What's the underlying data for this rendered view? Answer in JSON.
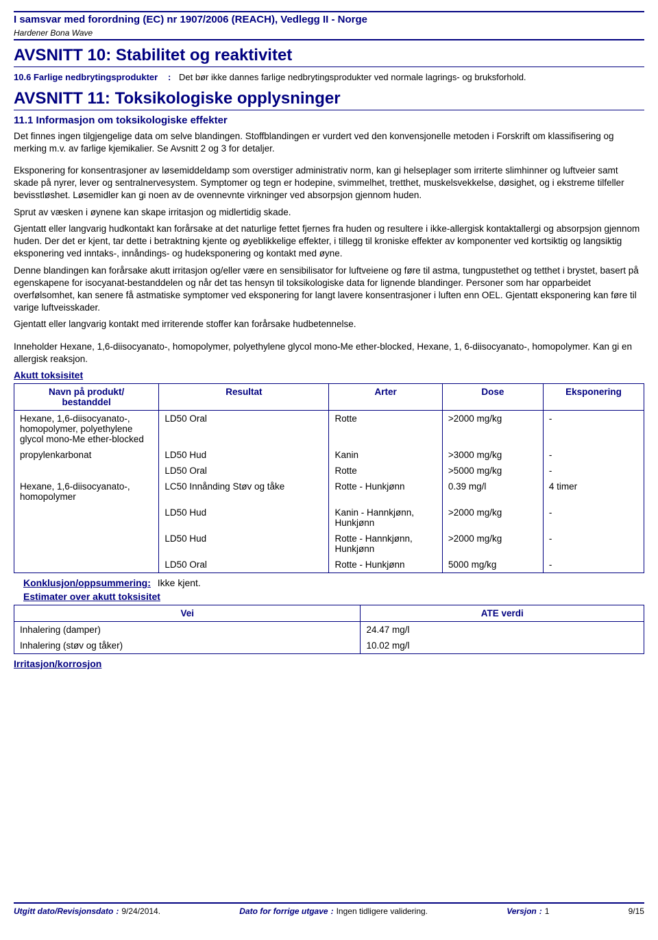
{
  "header": {
    "reg_line": "I samsvar med forordning (EC) nr 1907/2006 (REACH), Vedlegg II - Norge",
    "product": "Hardener Bona Wave"
  },
  "section10": {
    "title": "AVSNITT 10: Stabilitet og reaktivitet",
    "item": {
      "label": "10.6 Farlige nedbrytingsprodukter",
      "sep": ":",
      "value": "Det bør ikke dannes farlige nedbrytingsprodukter ved normale lagrings- og bruksforhold."
    }
  },
  "section11": {
    "title": "AVSNITT 11: Toksikologiske opplysninger",
    "sub": "11.1 Informasjon om toksikologiske effekter",
    "para1": "Det finnes ingen tilgjengelige data om selve blandingen. Stoffblandingen er vurdert ved den konvensjonelle metoden i Forskrift om klassifisering og merking m.v. av farlige kjemikalier. Se Avsnitt 2 og 3 for detaljer.",
    "para2": "Eksponering for konsentrasjoner av løsemiddeldamp som overstiger administrativ norm, kan gi helseplager som irriterte slimhinner og luftveier samt skade på nyrer, lever og sentralnervesystem. Symptomer og tegn er hodepine, svimmelhet, tretthet, muskelsvekkelse, døsighet, og i ekstreme tilfeller bevisstløshet. Løsemidler kan gi noen av de ovennevnte virkninger ved absorpsjon gjennom huden.",
    "para3": "Sprut av væsken i øynene kan skape irritasjon og midlertidig skade.",
    "para4": "Gjentatt eller langvarig hudkontakt kan forårsake at det naturlige fettet fjernes fra huden og resultere i ikke-allergisk kontaktallergi og absorpsjon gjennom huden. Der det er kjent, tar dette i betraktning kjente og øyeblikkelige effekter, i tillegg til kroniske effekter av komponenter ved kortsiktig og langsiktig eksponering ved inntaks-, innåndings- og hudeksponering og kontakt med øyne.",
    "para5": "Denne blandingen kan forårsake akutt irritasjon og/eller være en sensibilisator for luftveiene og føre til astma, tungpustethet og tetthet i brystet, basert på egenskapene for isocyanat-bestanddelen og når det tas hensyn til toksikologiske data for lignende blandinger. Personer som har opparbeidet overfølsomhet, kan senere få astmatiske symptomer ved eksponering for langt lavere konsentrasjoner i luften enn OEL. Gjentatt eksponering kan føre til varige luftveisskader.",
    "para6": "Gjentatt eller langvarig kontakt med irriterende stoffer kan forårsake hudbetennelse.",
    "para7": "Inneholder Hexane, 1,6-diisocyanato-, homopolymer, polyethylene glycol mono-Me ether-blocked, Hexane, 1, 6-diisocyanato-, homopolymer. Kan gi en allergisk reaksjon.",
    "acute_tox_link": "Akutt toksisitet"
  },
  "tox_table": {
    "headers": {
      "c0": "Navn på produkt/\nbestanddel",
      "c1": "Resultat",
      "c2": "Arter",
      "c3": "Dose",
      "c4": "Eksponering"
    },
    "col_widths": [
      "23%",
      "27%",
      "18%",
      "16%",
      "16%"
    ],
    "rows": [
      {
        "c0": "Hexane, 1,6-diisocyanato-, homopolymer, polyethylene glycol mono-Me ether-blocked",
        "c1": "LD50 Oral",
        "c2": "Rotte",
        "c3": ">2000 mg/kg",
        "c4": "-"
      },
      {
        "c0": "propylenkarbonat",
        "c1": "LD50 Hud",
        "c2": "Kanin",
        "c3": ">3000 mg/kg",
        "c4": "-"
      },
      {
        "c0": "",
        "c1": "LD50 Oral",
        "c2": "Rotte",
        "c3": ">5000 mg/kg",
        "c4": "-"
      },
      {
        "c0": "Hexane, 1,6-diisocyanato-, homopolymer",
        "c1": "LC50 Innånding Støv og tåke",
        "c2": "Rotte - Hunkjønn",
        "c3": "0.39 mg/l",
        "c4": "4 timer"
      },
      {
        "c0": "",
        "c1": "LD50 Hud",
        "c2": "Kanin - Hannkjønn, Hunkjønn",
        "c3": ">2000 mg/kg",
        "c4": "-"
      },
      {
        "c0": "",
        "c1": "LD50 Hud",
        "c2": "Rotte - Hannkjønn, Hunkjønn",
        "c3": ">2000 mg/kg",
        "c4": "-"
      },
      {
        "c0": "",
        "c1": "LD50 Oral",
        "c2": "Rotte - Hunkjønn",
        "c3": "5000 mg/kg",
        "c4": "-"
      }
    ]
  },
  "conclusion": {
    "label": "Konklusjon/oppsummering:",
    "value": "Ikke kjent."
  },
  "estimates_link": "Estimater over akutt toksisitet",
  "ate_table": {
    "headers": {
      "c0": "Vei",
      "c1": "ATE verdi"
    },
    "col_widths": [
      "55%",
      "45%"
    ],
    "rows": [
      {
        "c0": "Inhalering (damper)",
        "c1": "24.47 mg/l"
      },
      {
        "c0": "Inhalering (støv og tåker)",
        "c1": "10.02 mg/l"
      }
    ]
  },
  "irr_link": "Irritasjon/korrosjon",
  "footer": {
    "f1_label": "Utgitt dato/Revisjonsdato",
    "f1_sep": ":",
    "f1_val": "9/24/2014.",
    "f2_label": "Dato for forrige utgave",
    "f2_sep": ":",
    "f2_val": "Ingen tidligere validering.",
    "f3_label": "Versjon",
    "f3_sep": ":",
    "f3_val": "1",
    "page": "9/15"
  }
}
